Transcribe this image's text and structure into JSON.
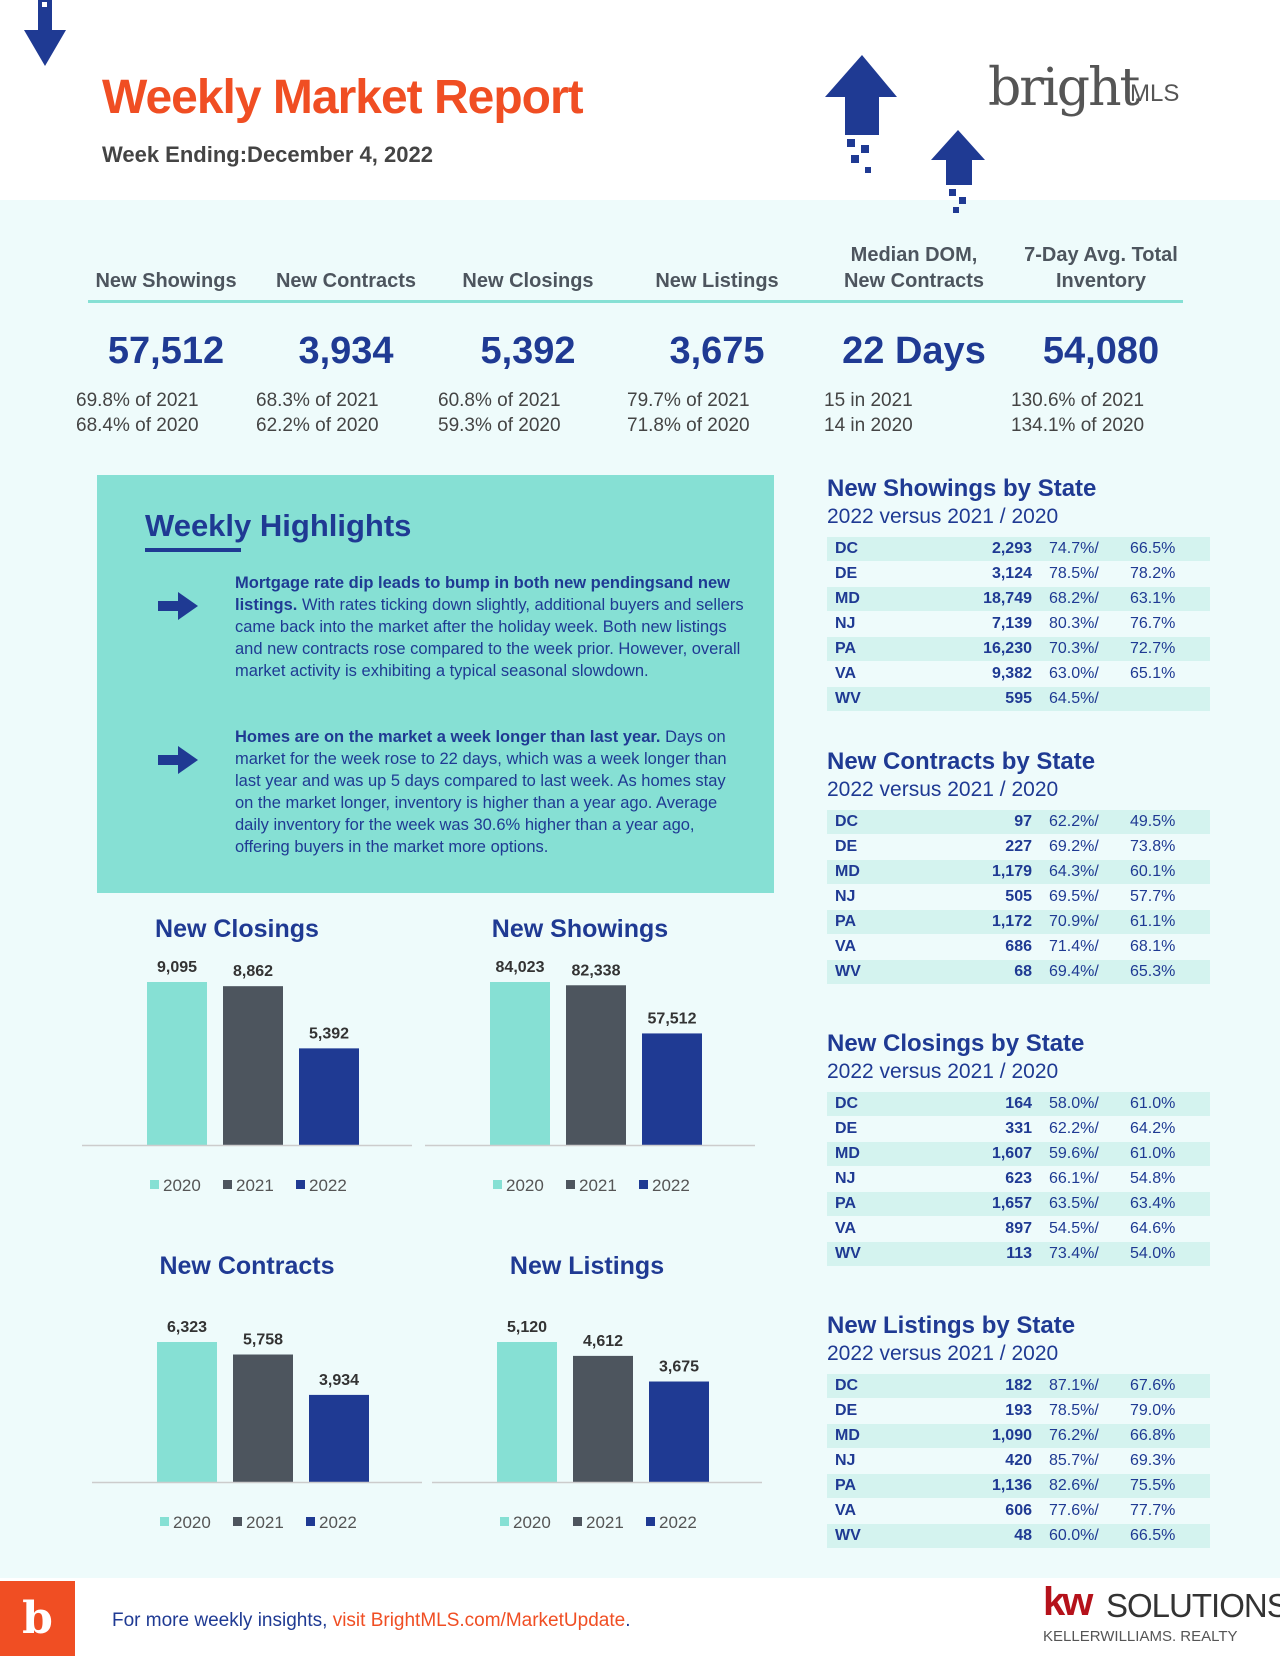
{
  "header": {
    "title": "Weekly Market Report",
    "subtitle": "Week Ending:December 4, 2022",
    "logo": "bright",
    "logo_suffix": "MLS"
  },
  "metrics": [
    {
      "label": "New Showings",
      "value": "57,512",
      "vs_2021": "69.8% of 2021",
      "vs_2020": "68.4% of 2020"
    },
    {
      "label": "New Contracts",
      "value": "3,934",
      "vs_2021": "68.3% of 2021",
      "vs_2020": "62.2% of 2020"
    },
    {
      "label": "New Closings",
      "value": "5,392",
      "vs_2021": "60.8% of 2021",
      "vs_2020": "59.3% of 2020"
    },
    {
      "label": "New Listings",
      "value": "3,675",
      "vs_2021": "79.7% of 2021",
      "vs_2020": "71.8% of 2020"
    },
    {
      "label": "Median DOM, New Contracts",
      "value": "22 Days",
      "vs_2021": "15 in 2021",
      "vs_2020": "14 in 2020"
    },
    {
      "label": "7-Day Avg. Total Inventory",
      "value": "54,080",
      "vs_2021": "130.6% of 2021",
      "vs_2020": "134.1% of 2020"
    }
  ],
  "highlights": {
    "title": "Weekly Highlights",
    "items": [
      {
        "headline": "Mortgage rate dip leads to bump in both new pendingsand new listings.",
        "text": "With rates ticking down slightly, additional buyers and sellers came back into the market after the holiday week. Both new listings and new contracts rose compared to the week prior. However, overall market activity is exhibiting a typical seasonal slowdown."
      },
      {
        "headline": "Homes are on the market a week longer than last year.",
        "text": "Days on market for the week rose to 22 days, which was a week longer than last year and was up 5 days compared to last week. As homes stay on the market longer, inventory is higher than a year ago. Average daily inventory for the week was 30.6% higher than a year ago, offering buyers in the market more options."
      }
    ]
  },
  "chart_data": [
    {
      "type": "bar",
      "title": "New Closings",
      "categories": [
        "2020",
        "2021",
        "2022"
      ],
      "values": [
        9095,
        8862,
        5392
      ],
      "value_labels": [
        "9,095",
        "8,862",
        "5,392"
      ],
      "colors": [
        "#86e0d4",
        "#4d555e",
        "#1f3a93"
      ]
    },
    {
      "type": "bar",
      "title": "New Showings",
      "categories": [
        "2020",
        "2021",
        "2022"
      ],
      "values": [
        84023,
        82338,
        57512
      ],
      "value_labels": [
        "84,023",
        "82,338",
        "57,512"
      ],
      "colors": [
        "#86e0d4",
        "#4d555e",
        "#1f3a93"
      ]
    },
    {
      "type": "bar",
      "title": "New Contracts",
      "categories": [
        "2020",
        "2021",
        "2022"
      ],
      "values": [
        6323,
        5758,
        3934
      ],
      "value_labels": [
        "6,323",
        "5,758",
        "3,934"
      ],
      "colors": [
        "#86e0d4",
        "#4d555e",
        "#1f3a93"
      ]
    },
    {
      "type": "bar",
      "title": "New Listings",
      "categories": [
        "2020",
        "2021",
        "2022"
      ],
      "values": [
        5120,
        4612,
        3675
      ],
      "value_labels": [
        "5,120",
        "4,612",
        "3,675"
      ],
      "colors": [
        "#86e0d4",
        "#4d555e",
        "#1f3a93"
      ]
    }
  ],
  "state_tables": [
    {
      "title": "New Showings by State",
      "subtitle": "2022 versus 2021 / 2020",
      "rows": [
        [
          "DC",
          "2,293",
          "74.7%/",
          "66.5%"
        ],
        [
          "DE",
          "3,124",
          "78.5%/",
          "78.2%"
        ],
        [
          "MD",
          "18,749",
          "68.2%/",
          "63.1%"
        ],
        [
          "NJ",
          "7,139",
          "80.3%/",
          "76.7%"
        ],
        [
          "PA",
          "16,230",
          "70.3%/",
          "72.7%"
        ],
        [
          "VA",
          "9,382",
          "63.0%/",
          "65.1%"
        ],
        [
          "WV",
          "595",
          "64.5%/"
        ]
      ]
    },
    {
      "title": "New Contracts by State",
      "subtitle": "2022 versus 2021 / 2020",
      "rows": [
        [
          "DC",
          "97",
          "62.2%/",
          "49.5%"
        ],
        [
          "DE",
          "227",
          "69.2%/",
          "73.8%"
        ],
        [
          "MD",
          "1,179",
          "64.3%/",
          "60.1%"
        ],
        [
          "NJ",
          "505",
          "69.5%/",
          "57.7%"
        ],
        [
          "PA",
          "1,172",
          "70.9%/",
          "61.1%"
        ],
        [
          "VA",
          "686",
          "71.4%/",
          "68.1%"
        ],
        [
          "WV",
          "68",
          "69.4%/",
          "65.3%"
        ]
      ]
    },
    {
      "title": "New Closings by State",
      "subtitle": "2022 versus 2021 / 2020",
      "rows": [
        [
          "DC",
          "164",
          "58.0%/",
          "61.0%"
        ],
        [
          "DE",
          "331",
          "62.2%/",
          "64.2%"
        ],
        [
          "MD",
          "1,607",
          "59.6%/",
          "61.0%"
        ],
        [
          "NJ",
          "623",
          "66.1%/",
          "54.8%"
        ],
        [
          "PA",
          "1,657",
          "63.5%/",
          "63.4%"
        ],
        [
          "VA",
          "897",
          "54.5%/",
          "64.6%"
        ],
        [
          "WV",
          "113",
          "73.4%/",
          "54.0%"
        ]
      ]
    },
    {
      "title": "New Listings by State",
      "subtitle": "2022 versus 2021 / 2020",
      "rows": [
        [
          "DC",
          "182",
          "87.1%/",
          "67.6%"
        ],
        [
          "DE",
          "193",
          "78.5%/",
          "79.0%"
        ],
        [
          "MD",
          "1,090",
          "76.2%/",
          "66.8%"
        ],
        [
          "NJ",
          "420",
          "85.7%/",
          "69.3%"
        ],
        [
          "PA",
          "1,136",
          "82.6%/",
          "75.5%"
        ],
        [
          "VA",
          "606",
          "77.6%/",
          "77.7%"
        ],
        [
          "WV",
          "48",
          "60.0%/",
          "66.5%"
        ]
      ]
    }
  ],
  "footer": {
    "text": "For more weekly insights, ",
    "link": "visit BrightMLS.com/MarketUpdate",
    "end": ".",
    "brand": "kw",
    "brand_name": "SOLUTIONS",
    "brand_sub": "KELLERWILLIAMS. REALTY"
  }
}
